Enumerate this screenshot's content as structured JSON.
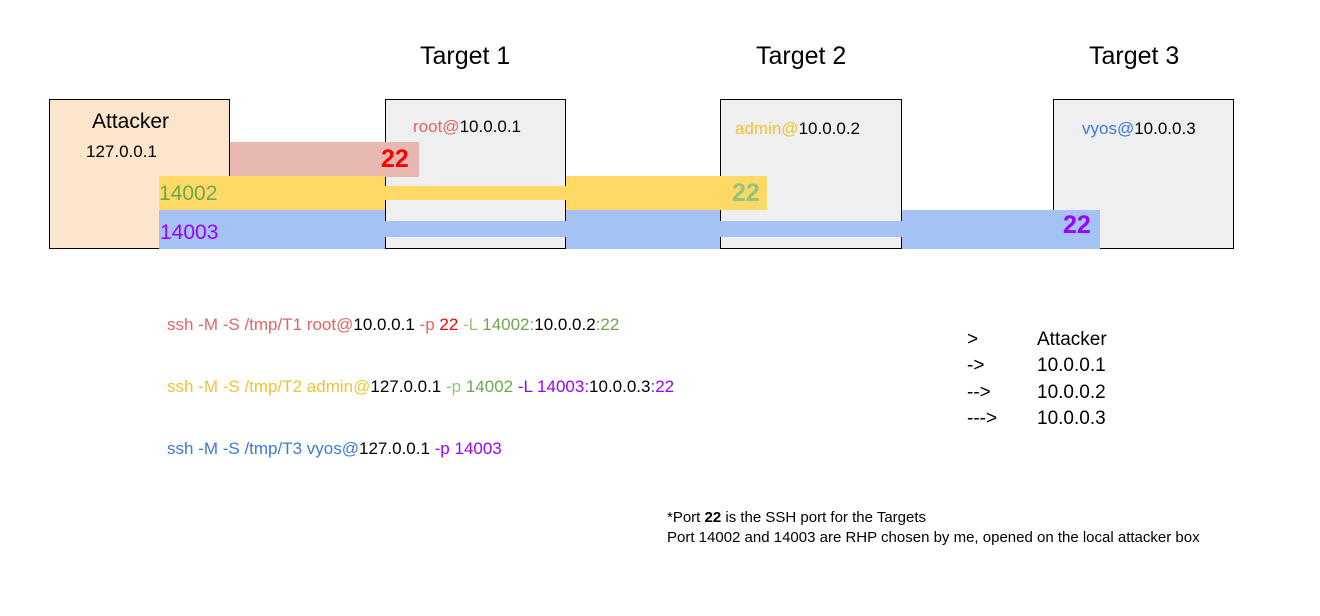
{
  "titles": {
    "t1": "Target 1",
    "t2": "Target 2",
    "t3": "Target 3"
  },
  "attacker": {
    "name": "Attacker",
    "ip": "127.0.0.1"
  },
  "targets": [
    {
      "user": "root@",
      "ip": "10.0.0.1"
    },
    {
      "user": "admin@",
      "ip": "10.0.0.2"
    },
    {
      "user": "vyos@",
      "ip": "10.0.0.3"
    }
  ],
  "tunnels": {
    "t1_port": "22",
    "t2_local_port": "14002",
    "t2_port": "22",
    "t3_local_port": "14003",
    "t3_port": "22"
  },
  "commands": [
    {
      "parts": [
        {
          "text": "ssh -M -S /tmp/T1 root@",
          "color": "#e06666"
        },
        {
          "text": "10.0.0.1",
          "color": "#000000"
        },
        {
          "text": " -p ",
          "color": "#e06666"
        },
        {
          "text": "22",
          "color": "#ff0000"
        },
        {
          "text": " -L ",
          "color": "#93c47d"
        },
        {
          "text": "14002:",
          "color": "#6aa84f"
        },
        {
          "text": "10.0.0.2",
          "color": "#000000"
        },
        {
          "text": ":22",
          "color": "#6aa84f"
        }
      ]
    },
    {
      "parts": [
        {
          "text": "ssh -M -S /tmp/T2 admin@",
          "color": "#f1c232"
        },
        {
          "text": "127.0.0.1",
          "color": "#000000"
        },
        {
          "text": " -p ",
          "color": "#93c47d"
        },
        {
          "text": "14002",
          "color": "#6aa84f"
        },
        {
          "text": " -L ",
          "color": "#9900ff"
        },
        {
          "text": "14003:",
          "color": "#9900ff"
        },
        {
          "text": "10.0.0.3",
          "color": "#000000"
        },
        {
          "text": ":22",
          "color": "#9900ff"
        }
      ]
    },
    {
      "parts": [
        {
          "text": "ssh -M -S /tmp/T3 vyos@",
          "color": "#3c78d8"
        },
        {
          "text": "127.0.0.1",
          "color": "#000000"
        },
        {
          "text": " -p ",
          "color": "#9900ff"
        },
        {
          "text": "14003",
          "color": "#9900ff"
        }
      ]
    }
  ],
  "legend": [
    {
      "arrow": ">",
      "host": "Attacker"
    },
    {
      "arrow": "->",
      "host": "10.0.0.1"
    },
    {
      "arrow": "-->",
      "host": "10.0.0.2"
    },
    {
      "arrow": "--->",
      "host": "10.0.0.3"
    }
  ],
  "notes": {
    "line1_prefix": "*Port ",
    "line1_bold": "22",
    "line1_suffix": " is the SSH port for the Targets",
    "line2": "Port 14002 and 14003 are RHP chosen by me, opened on the local attacker box"
  },
  "colors": {
    "attacker_fill": "#fce5cd",
    "target_fill": "#efefef",
    "red_band": "#e6b8af",
    "yellow_band": "#ffd966",
    "blue_band": "#a4c2f4",
    "root_user": "#e06666",
    "admin_user": "#f1c232",
    "vyos_user": "#3c78d8"
  }
}
